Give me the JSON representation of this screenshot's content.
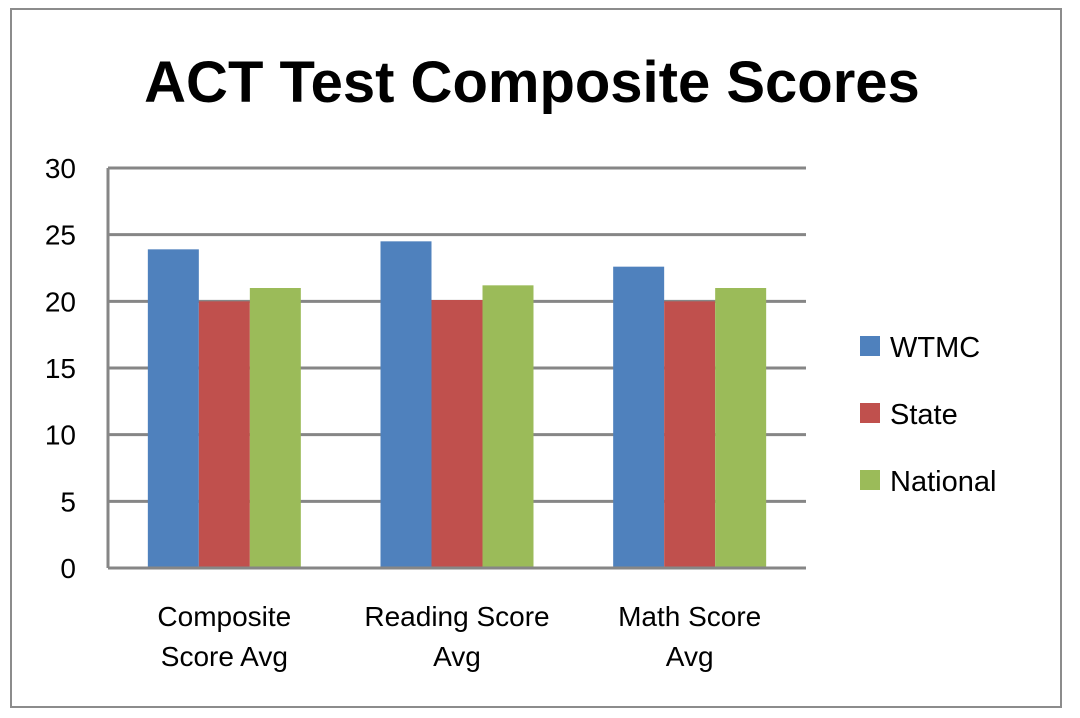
{
  "chart_data": {
    "type": "bar",
    "title": "ACT Test Composite Scores",
    "categories": [
      [
        "Composite",
        "Score Avg"
      ],
      [
        "Reading Score",
        "Avg"
      ],
      [
        "Math Score",
        "Avg"
      ]
    ],
    "series": [
      {
        "name": "WTMC",
        "color": "#4f81bd",
        "values": [
          23.9,
          24.5,
          22.6
        ]
      },
      {
        "name": "State",
        "color": "#c0504d",
        "values": [
          20.0,
          20.1,
          20.0
        ]
      },
      {
        "name": "National",
        "color": "#9bbb59",
        "values": [
          21.0,
          21.2,
          21.0
        ]
      }
    ],
    "ylim": [
      0,
      30
    ],
    "yticks": [
      0,
      5,
      10,
      15,
      20,
      25,
      30
    ],
    "grid": true,
    "legend": "right"
  }
}
